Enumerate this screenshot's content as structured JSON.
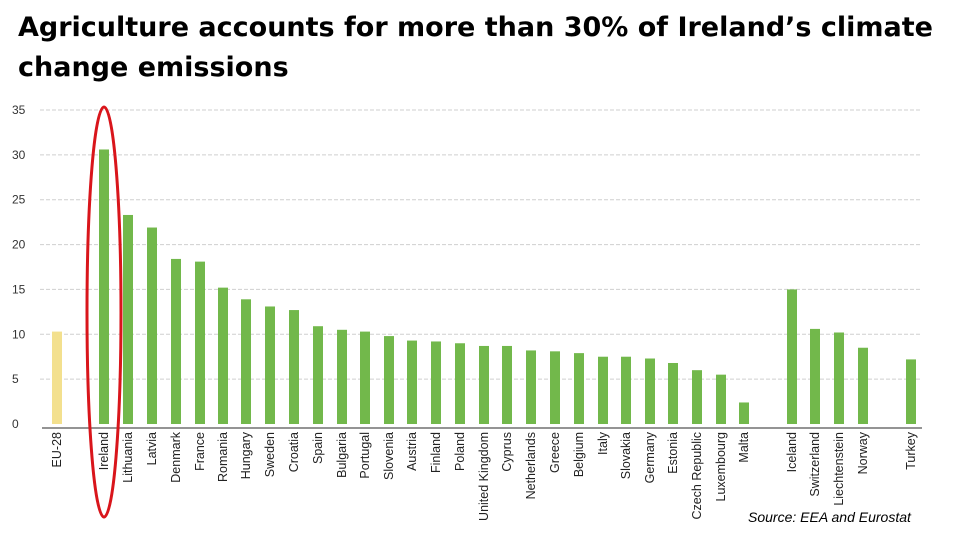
{
  "slide": {
    "title": "Agriculture accounts for more than 30% of Ireland’s climate change emissions",
    "source": "Source: EEA and Eurostat"
  },
  "chart_data": {
    "type": "bar",
    "title": "",
    "xlabel": "",
    "ylabel": "",
    "ylim": [
      0,
      35
    ],
    "yticks": [
      0,
      5,
      10,
      15,
      20,
      25,
      30,
      35
    ],
    "grid": true,
    "legend": "none",
    "highlight": "Ireland",
    "colors": {
      "eu": "#f3e08e",
      "country": "#72b84b",
      "grid": "#cfcfcf",
      "highlight_ring": "#d9151b"
    },
    "categories": [
      "EU-28",
      "Ireland",
      "Lithuania",
      "Latvia",
      "Denmark",
      "France",
      "Romania",
      "Hungary",
      "Sweden",
      "Croatia",
      "Spain",
      "Bulgaria",
      "Portugal",
      "Slovenia",
      "Austria",
      "Finland",
      "Poland",
      "United Kingdom",
      "Cyprus",
      "Netherlands",
      "Greece",
      "Belgium",
      "Italy",
      "Slovakia",
      "Germany",
      "Estonia",
      "Czech Republic",
      "Luxembourg",
      "Malta",
      "Iceland",
      "Switzerland",
      "Liechtenstein",
      "Norway",
      "Turkey"
    ],
    "values": [
      10.3,
      30.6,
      23.3,
      21.9,
      18.4,
      18.1,
      15.2,
      13.9,
      13.1,
      12.7,
      10.9,
      10.5,
      10.3,
      9.8,
      9.3,
      9.2,
      9.0,
      8.7,
      8.7,
      8.2,
      8.1,
      7.9,
      7.5,
      7.5,
      7.3,
      6.8,
      6.0,
      5.5,
      2.4,
      15.0,
      10.6,
      10.2,
      8.5,
      7.2
    ]
  }
}
